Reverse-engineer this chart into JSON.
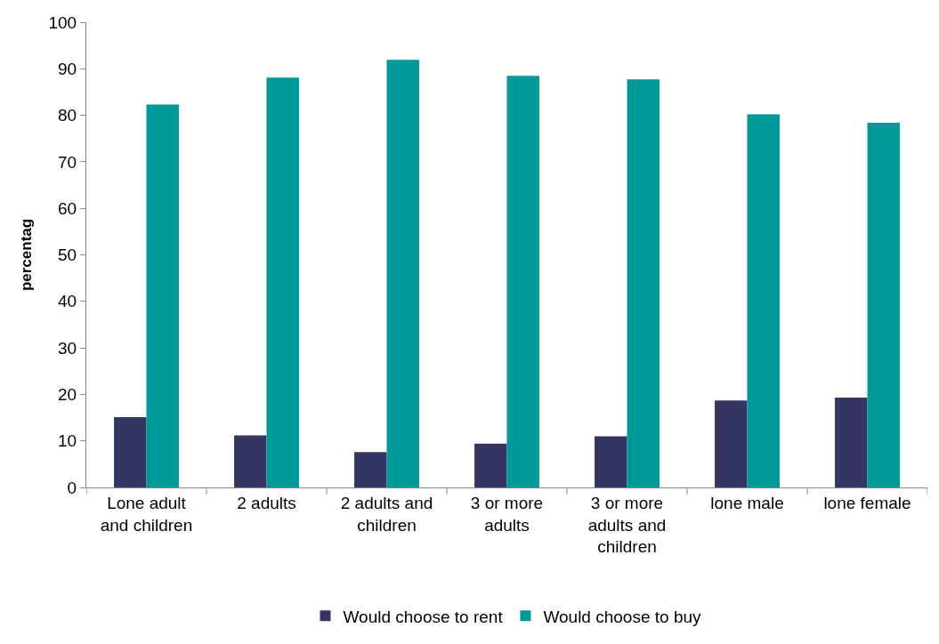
{
  "chart_data": {
    "type": "bar",
    "ylabel": "percentag",
    "categories": [
      "Lone adult and children",
      "2 adults",
      "2 adults and children",
      "3 or more adults",
      "3 or more adults and children",
      "lone male",
      "lone female"
    ],
    "series": [
      {
        "name": "Would choose to rent",
        "color": "#353563",
        "values": [
          15.1,
          11.2,
          7.6,
          9.4,
          11.0,
          18.7,
          19.3
        ]
      },
      {
        "name": "Would choose to buy",
        "color": "#009999",
        "values": [
          82.3,
          88.1,
          91.9,
          88.5,
          87.7,
          80.2,
          78.4
        ]
      }
    ],
    "ylim": [
      0,
      100
    ],
    "yticks": [
      0,
      10,
      20,
      30,
      40,
      50,
      60,
      70,
      80,
      90,
      100
    ],
    "legend": "bottom"
  }
}
